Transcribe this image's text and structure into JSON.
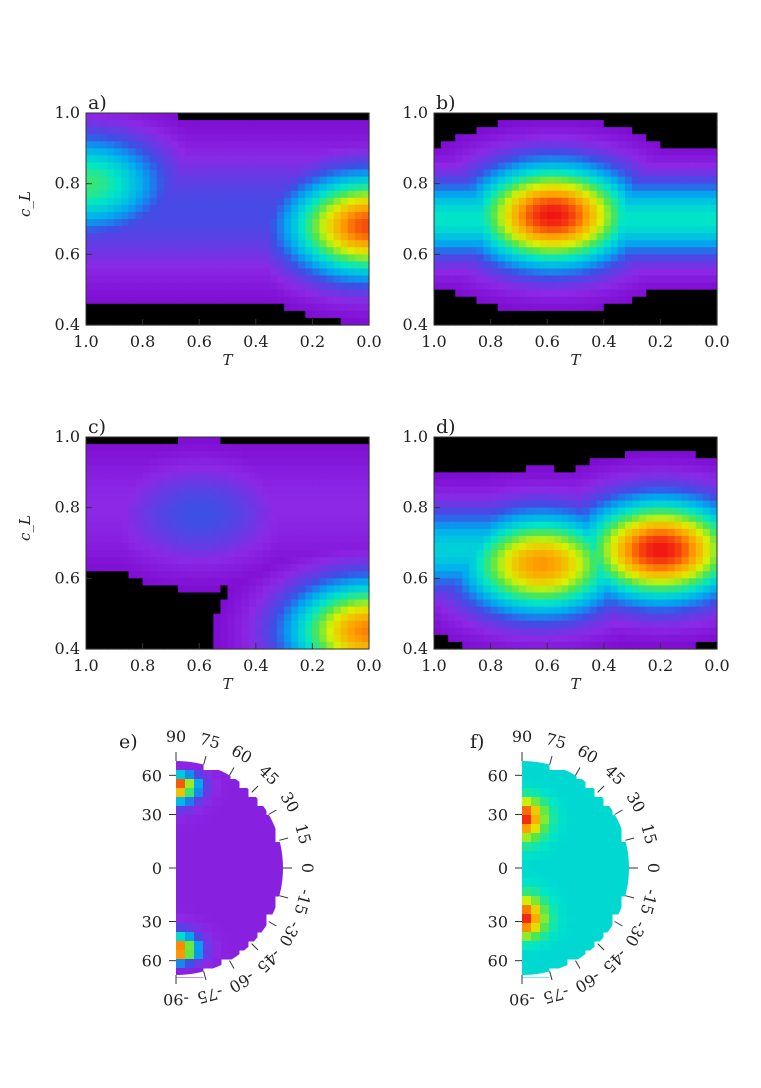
{
  "chart_data": [
    {
      "type": "heatmap",
      "panel_label": "a)",
      "xlabel": "T",
      "ylabel": "c_L",
      "xlim": [
        1.0,
        0.0
      ],
      "ylim": [
        0.4,
        1.0
      ],
      "x_ticks": [
        "1.0",
        "0.8",
        "0.6",
        "0.4",
        "0.2",
        "0.0"
      ],
      "y_ticks": [
        "0.4",
        "0.6",
        "0.8",
        "1.0"
      ],
      "peaks": [
        {
          "x": 0.0,
          "y": 0.68,
          "level": 0.95
        },
        {
          "x": 1.0,
          "y": 0.8,
          "level": 0.62
        }
      ],
      "contour_levels": [
        0.2,
        0.55
      ]
    },
    {
      "type": "heatmap",
      "panel_label": "b)",
      "xlabel": "T",
      "ylabel": "",
      "xlim": [
        1.0,
        0.0
      ],
      "ylim": [
        0.4,
        1.0
      ],
      "x_ticks": [
        "1.0",
        "0.8",
        "0.6",
        "0.4",
        "0.2",
        "0.0"
      ],
      "y_ticks": [
        "0.4",
        "0.6",
        "0.8",
        "1.0"
      ],
      "peaks": [
        {
          "x": 0.58,
          "y": 0.71,
          "level": 1.0
        }
      ],
      "contour_levels": [
        0.2,
        0.55
      ]
    },
    {
      "type": "heatmap",
      "panel_label": "c)",
      "xlabel": "T",
      "ylabel": "c_L",
      "xlim": [
        1.0,
        0.0
      ],
      "ylim": [
        0.4,
        1.0
      ],
      "x_ticks": [
        "1.0",
        "0.8",
        "0.6",
        "0.4",
        "0.2",
        "0.0"
      ],
      "y_ticks": [
        "0.4",
        "0.6",
        "0.8",
        "1.0"
      ],
      "peaks": [
        {
          "x": 0.0,
          "y": 0.45,
          "level": 0.9
        },
        {
          "x": 0.6,
          "y": 0.78,
          "level": 0.3
        }
      ],
      "contour_levels": [
        0.2,
        0.55
      ]
    },
    {
      "type": "heatmap",
      "panel_label": "d)",
      "xlabel": "T",
      "ylabel": "",
      "xlim": [
        1.0,
        0.0
      ],
      "ylim": [
        0.4,
        1.0
      ],
      "x_ticks": [
        "1.0",
        "0.8",
        "0.6",
        "0.4",
        "0.2",
        "0.0"
      ],
      "y_ticks": [
        "0.4",
        "0.6",
        "0.8",
        "1.0"
      ],
      "peaks": [
        {
          "x": 0.2,
          "y": 0.68,
          "level": 1.0
        },
        {
          "x": 0.62,
          "y": 0.64,
          "level": 0.88
        }
      ],
      "contour_levels": [
        0.2,
        0.55
      ]
    },
    {
      "type": "heatmap",
      "panel_label": "e)",
      "projection": "half-disc latitude map",
      "left_labels": [
        "60",
        "30",
        "0",
        "30",
        "60"
      ],
      "arc_labels": [
        "90",
        "75",
        "60",
        "45",
        "30",
        "15",
        "0",
        "-15",
        "-30",
        "-45",
        "-60",
        "-75",
        "-90"
      ],
      "hotspots": [
        {
          "lat": 50,
          "level": 1.0
        },
        {
          "lat": -50,
          "level": 1.0
        }
      ],
      "background_level": 0.12
    },
    {
      "type": "heatmap",
      "panel_label": "f)",
      "projection": "half-disc latitude map",
      "left_labels": [
        "60",
        "30",
        "0",
        "30",
        "60"
      ],
      "arc_labels": [
        "90",
        "75",
        "60",
        "45",
        "30",
        "15",
        "0",
        "-15",
        "-30",
        "-45",
        "-60",
        "-75",
        "-90"
      ],
      "hotspots": [
        {
          "lat": 28,
          "level": 1.0
        },
        {
          "lat": -28,
          "level": 1.0
        }
      ],
      "background_level": 0.52
    }
  ]
}
